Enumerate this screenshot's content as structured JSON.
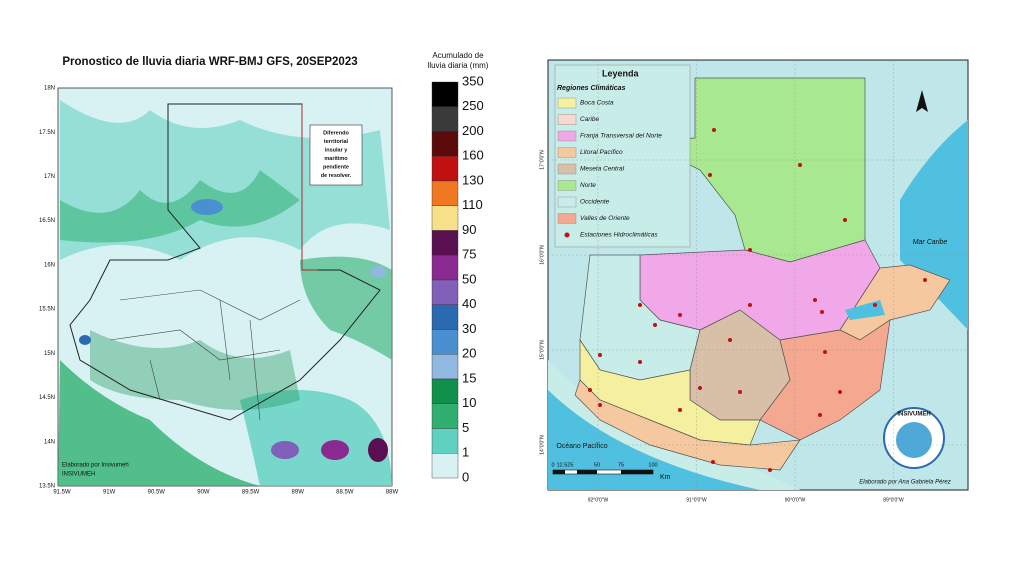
{
  "rain_map": {
    "title": "Pronostico de lluvia diaria WRF-BMJ GFS,  20SEP2023",
    "colorbar": {
      "title_lines": [
        "Acumulado de",
        "lluvia diaria (mm)"
      ],
      "labels": [
        "350",
        "250",
        "200",
        "160",
        "130",
        "110",
        "90",
        "75",
        "50",
        "40",
        "30",
        "20",
        "15",
        "10",
        "5",
        "1",
        "0"
      ],
      "colors": [
        "#000000",
        "#3a3a3a",
        "#5a0a0a",
        "#c01010",
        "#f07820",
        "#f8e08a",
        "#5a1050",
        "#8a2a90",
        "#8060b8",
        "#2a6ab0",
        "#4a90d0",
        "#90b8e0",
        "#10904a",
        "#30b070",
        "#60d0c0",
        "#d8f2f4"
      ]
    },
    "lat_ticks": [
      "18N",
      "17.5N",
      "17N",
      "16.5N",
      "16N",
      "15.5N",
      "15N",
      "14.5N",
      "14N",
      "13.5N"
    ],
    "lon_ticks": [
      "91.5W",
      "91W",
      "90.5W",
      "90W",
      "89.5W",
      "89W",
      "88.5W",
      "88W"
    ],
    "note": [
      "Diferendo",
      "territorial",
      "insular y",
      "marítimo",
      "pendiente",
      "de resolver."
    ],
    "credit": [
      "Elaborado por Insivumeh",
      "INSIVUMEH"
    ]
  },
  "climate_map": {
    "legend_title": "Leyenda",
    "legend_subtitle": "Regiones Climáticas",
    "regions": [
      {
        "name": "Boca Costa",
        "color": "#f5f0a0"
      },
      {
        "name": "Caribe",
        "color": "#f8d8d0"
      },
      {
        "name": "Franja Transversal del Norte",
        "color": "#f0a8e8"
      },
      {
        "name": "Litoral Pacífico",
        "color": "#f5c8a0"
      },
      {
        "name": "Meseta Central",
        "color": "#d8c0a8"
      },
      {
        "name": "Norte",
        "color": "#a8e890"
      },
      {
        "name": "Occidente",
        "color": "#c8ece8"
      },
      {
        "name": "Valles de Oriente",
        "color": "#f5a890"
      }
    ],
    "stations_label": "Estaciones Hidroclimáticas",
    "sea_labels": [
      "Mar Caribe",
      "Océano Pacífico"
    ],
    "lon_ticks": [
      "92°0'0\"W",
      "91°0'0\"W",
      "90°0'0\"W",
      "89°0'0\"W"
    ],
    "lat_ticks": [
      "17°0'0\"N",
      "16°0'0\"N",
      "15°0'0\"N",
      "14°0'0\"N"
    ],
    "scale_labels": [
      "0",
      "12.525",
      "50",
      "75",
      "100"
    ],
    "scale_unit": "Km",
    "logo": "INSIVUMEH",
    "credit": "Elaborado por Ana Gabriela Pérez"
  }
}
